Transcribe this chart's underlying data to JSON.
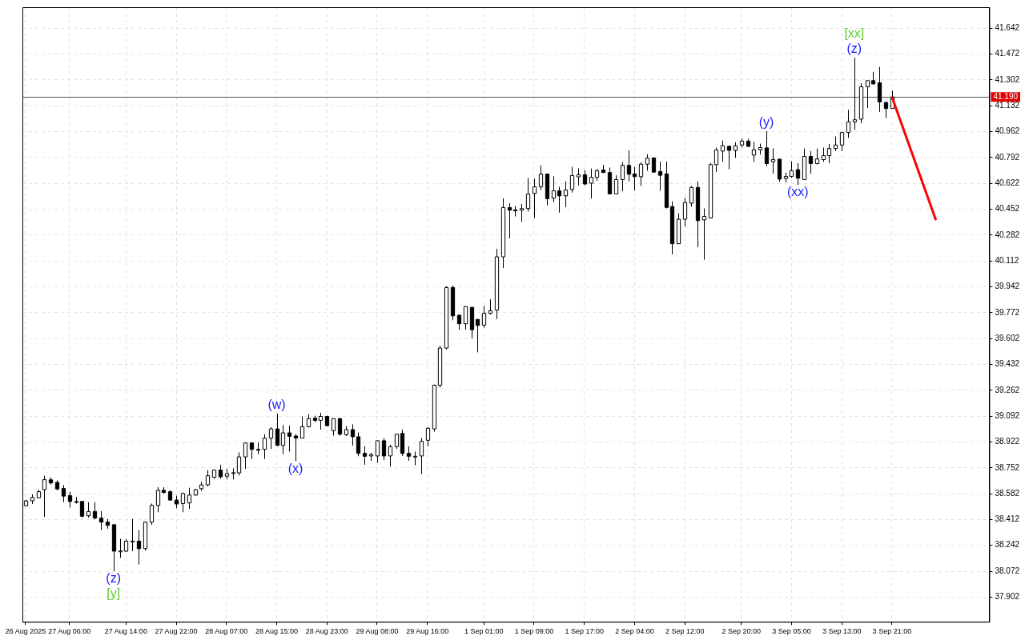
{
  "chart_data": {
    "type": "candlestick",
    "categories": [
      "26 Aug 2025",
      null,
      null,
      null,
      null,
      null,
      null,
      "27 Aug 06:00",
      null,
      null,
      null,
      null,
      null,
      null,
      null,
      null,
      "27 Aug 14:00",
      null,
      null,
      null,
      null,
      null,
      null,
      null,
      "27 Aug 22:00",
      null,
      null,
      null,
      null,
      null,
      null,
      null,
      "28 Aug 07:00",
      null,
      null,
      null,
      null,
      null,
      null,
      null,
      "28 Aug 15:00",
      null,
      null,
      null,
      null,
      null,
      null,
      null,
      "28 Aug 23:00",
      null,
      null,
      null,
      null,
      null,
      null,
      null,
      "29 Aug 08:00",
      null,
      null,
      null,
      null,
      null,
      null,
      null,
      "29 Aug 16:00",
      null,
      null,
      null,
      null,
      null,
      null,
      null,
      null,
      "1 Sep 01:00",
      null,
      null,
      null,
      null,
      null,
      null,
      null,
      "1 Sep 09:00",
      null,
      null,
      null,
      null,
      null,
      null,
      null,
      "1 Sep 17:00",
      null,
      null,
      null,
      null,
      null,
      null,
      null,
      "2 Sep 04:00",
      null,
      null,
      null,
      null,
      null,
      null,
      null,
      "2 Sep 12:00",
      null,
      null,
      null,
      null,
      null,
      null,
      null,
      null,
      "2 Sep 20:00",
      null,
      null,
      null,
      null,
      null,
      null,
      null,
      "3 Sep 05:00",
      null,
      null,
      null,
      null,
      null,
      null,
      null,
      "3 Sep 13:00",
      null,
      null,
      null,
      null,
      null,
      null,
      null,
      "3 Sep 21:00",
      null,
      null,
      null,
      null,
      null,
      null,
      null,
      null,
      null,
      null,
      null,
      null,
      null,
      null,
      null
    ],
    "ohlc": [
      [
        38.503,
        38.54,
        38.5,
        38.535
      ],
      [
        38.535,
        38.578,
        38.514,
        38.557
      ],
      [
        38.555,
        38.608,
        38.552,
        38.595
      ],
      [
        38.608,
        38.7,
        38.43,
        38.674
      ],
      [
        38.673,
        38.69,
        38.642,
        38.653
      ],
      [
        38.656,
        38.67,
        38.604,
        38.613
      ],
      [
        38.616,
        38.639,
        38.526,
        38.566
      ],
      [
        38.569,
        38.595,
        38.491,
        38.531
      ],
      [
        38.53,
        38.561,
        38.517,
        38.529
      ],
      [
        38.531,
        38.531,
        38.425,
        38.434
      ],
      [
        38.437,
        38.526,
        38.425,
        38.465
      ],
      [
        38.465,
        38.526,
        38.416,
        38.421
      ],
      [
        38.421,
        38.468,
        38.343,
        38.395
      ],
      [
        38.395,
        38.416,
        38.352,
        38.374
      ],
      [
        38.378,
        38.378,
        38.073,
        38.204
      ],
      [
        38.205,
        38.286,
        38.16,
        38.205
      ],
      [
        38.204,
        38.282,
        38.199,
        38.27
      ],
      [
        38.27,
        38.416,
        38.204,
        38.27
      ],
      [
        38.27,
        38.343,
        38.117,
        38.221
      ],
      [
        38.221,
        38.4,
        38.207,
        38.395
      ],
      [
        38.395,
        38.517,
        38.378,
        38.505
      ],
      [
        38.505,
        38.625,
        38.46,
        38.604
      ],
      [
        38.604,
        38.625,
        38.583,
        38.59
      ],
      [
        38.595,
        38.604,
        38.535,
        38.54
      ],
      [
        38.54,
        38.569,
        38.486,
        38.514
      ],
      [
        38.517,
        38.59,
        38.46,
        38.583
      ],
      [
        38.521,
        38.621,
        38.482,
        38.573
      ],
      [
        38.573,
        38.613,
        38.569,
        38.608
      ],
      [
        38.615,
        38.66,
        38.6,
        38.64
      ],
      [
        38.64,
        38.737,
        38.63,
        38.7
      ],
      [
        38.69,
        38.74,
        38.68,
        38.737
      ],
      [
        38.737,
        38.772,
        38.68,
        38.693
      ],
      [
        38.697,
        38.745,
        38.676,
        38.714
      ],
      [
        38.719,
        38.749,
        38.676,
        38.72
      ],
      [
        38.719,
        38.854,
        38.702,
        38.824
      ],
      [
        38.824,
        38.92,
        38.745,
        38.915
      ],
      [
        38.915,
        38.92,
        38.81,
        38.873
      ],
      [
        38.873,
        38.92,
        38.842,
        38.872
      ],
      [
        38.873,
        38.973,
        38.81,
        38.947
      ],
      [
        38.947,
        39.02,
        38.877,
        39.008
      ],
      [
        39.008,
        39.108,
        38.894,
        38.9
      ],
      [
        38.9,
        39.034,
        38.842,
        38.982
      ],
      [
        38.982,
        39.029,
        38.859,
        38.959
      ],
      [
        38.961,
        38.973,
        38.795,
        38.947
      ],
      [
        38.947,
        39.09,
        38.947,
        39.022
      ],
      [
        39.022,
        39.104,
        39.017,
        39.075
      ],
      [
        39.078,
        39.095,
        39.052,
        39.064
      ],
      [
        39.064,
        39.113,
        39.003,
        39.09
      ],
      [
        39.09,
        39.095,
        39.026,
        39.029
      ],
      [
        38.996,
        39.075,
        38.964,
        39.075
      ],
      [
        39.075,
        39.081,
        38.964,
        38.973
      ],
      [
        38.97,
        39.026,
        38.961,
        39.003
      ],
      [
        39.003,
        39.038,
        38.898,
        38.956
      ],
      [
        38.956,
        38.985,
        38.828,
        38.847
      ],
      [
        38.847,
        38.894,
        38.772,
        38.828
      ],
      [
        38.83,
        38.85,
        38.798,
        38.838
      ],
      [
        38.83,
        38.933,
        38.786,
        38.93
      ],
      [
        38.93,
        38.947,
        38.803,
        38.83
      ],
      [
        38.83,
        38.903,
        38.76,
        38.891
      ],
      [
        38.891,
        38.976,
        38.877,
        38.973
      ],
      [
        38.978,
        39.003,
        38.83,
        38.847
      ],
      [
        38.847,
        38.894,
        38.798,
        38.828
      ],
      [
        38.828,
        38.859,
        38.768,
        38.828
      ],
      [
        38.83,
        38.947,
        38.71,
        38.926
      ],
      [
        38.933,
        39.02,
        38.894,
        39.012
      ],
      [
        39.008,
        39.3,
        38.99,
        39.295
      ],
      [
        39.295,
        39.555,
        39.28,
        39.539
      ],
      [
        39.539,
        39.946,
        39.53,
        39.937
      ],
      [
        39.937,
        39.951,
        39.722,
        39.751
      ],
      [
        39.755,
        39.76,
        39.66,
        39.699
      ],
      [
        39.699,
        39.812,
        39.66,
        39.812
      ],
      [
        39.807,
        39.807,
        39.603,
        39.66
      ],
      [
        39.728,
        39.728,
        39.511,
        39.688
      ],
      [
        39.69,
        39.817,
        39.673,
        39.768
      ],
      [
        39.768,
        39.859,
        39.76,
        39.784
      ],
      [
        39.789,
        40.192,
        39.73,
        40.139
      ],
      [
        40.139,
        40.523,
        40.065,
        40.463
      ],
      [
        40.463,
        40.491,
        40.261,
        40.446
      ],
      [
        40.447,
        40.474,
        40.404,
        40.446
      ],
      [
        40.446,
        40.486,
        40.369,
        40.456
      ],
      [
        40.456,
        40.657,
        40.436,
        40.552
      ],
      [
        40.556,
        40.653,
        40.394,
        40.599
      ],
      [
        40.599,
        40.74,
        40.578,
        40.683
      ],
      [
        40.683,
        40.683,
        40.477,
        40.521
      ],
      [
        40.525,
        40.669,
        40.497,
        40.573
      ],
      [
        40.573,
        40.599,
        40.43,
        40.54
      ],
      [
        40.54,
        40.636,
        40.465,
        40.578
      ],
      [
        40.582,
        40.73,
        40.561,
        40.673
      ],
      [
        40.665,
        40.721,
        40.608,
        40.678
      ],
      [
        40.678,
        40.709,
        40.608,
        40.618
      ],
      [
        40.623,
        40.719,
        40.522,
        40.661
      ],
      [
        40.661,
        40.717,
        40.639,
        40.705
      ],
      [
        40.71,
        40.743,
        40.693,
        40.693
      ],
      [
        40.693,
        40.726,
        40.553,
        40.553
      ],
      [
        40.553,
        40.675,
        40.553,
        40.647
      ],
      [
        40.647,
        40.762,
        40.57,
        40.74
      ],
      [
        40.74,
        40.839,
        40.635,
        40.682
      ],
      [
        40.684,
        40.731,
        40.574,
        40.666
      ],
      [
        40.666,
        40.761,
        40.605,
        40.748
      ],
      [
        40.748,
        40.813,
        40.705,
        40.787
      ],
      [
        40.789,
        40.792,
        40.691,
        40.696
      ],
      [
        40.7,
        40.766,
        40.574,
        40.675
      ],
      [
        40.684,
        40.766,
        40.457,
        40.464
      ],
      [
        40.469,
        40.504,
        40.155,
        40.225
      ],
      [
        40.225,
        40.426,
        40.225,
        40.386
      ],
      [
        40.386,
        40.527,
        40.339,
        40.496
      ],
      [
        40.492,
        40.605,
        40.469,
        40.595
      ],
      [
        40.595,
        40.635,
        40.203,
        40.377
      ],
      [
        40.382,
        40.457,
        40.12,
        40.405
      ],
      [
        40.394,
        40.757,
        40.394,
        40.745
      ],
      [
        40.745,
        40.857,
        40.696,
        40.841
      ],
      [
        40.834,
        40.904,
        40.764,
        40.869
      ],
      [
        40.866,
        40.866,
        40.715,
        40.839
      ],
      [
        40.839,
        40.892,
        40.79,
        40.869
      ],
      [
        40.874,
        40.916,
        40.857,
        40.9
      ],
      [
        40.9,
        40.916,
        40.86,
        40.865
      ],
      [
        40.808,
        40.895,
        40.764,
        40.843
      ],
      [
        40.843,
        40.883,
        40.811,
        40.857
      ],
      [
        40.855,
        40.965,
        40.734,
        40.752
      ],
      [
        40.764,
        40.852,
        40.685,
        40.778
      ],
      [
        40.781,
        40.781,
        40.633,
        40.65
      ],
      [
        40.654,
        40.694,
        40.628,
        40.668
      ],
      [
        40.668,
        40.767,
        40.659,
        40.706
      ],
      [
        40.712,
        40.755,
        40.612,
        40.656
      ],
      [
        40.647,
        40.851,
        40.647,
        40.799
      ],
      [
        40.799,
        40.834,
        40.685,
        40.752
      ],
      [
        40.752,
        40.851,
        40.747,
        40.782
      ],
      [
        40.778,
        40.857,
        40.764,
        40.804
      ],
      [
        40.804,
        40.881,
        40.755,
        40.851
      ],
      [
        40.851,
        40.93,
        40.834,
        40.874
      ],
      [
        40.874,
        40.96,
        40.834,
        40.956
      ],
      [
        40.956,
        41.105,
        40.921,
        41.026
      ],
      [
        41.026,
        41.449,
        40.974,
        41.04
      ],
      [
        41.044,
        41.28,
        41.017,
        41.257
      ],
      [
        41.257,
        41.297,
        41.117,
        41.297
      ],
      [
        41.297,
        41.355,
        41.271,
        41.276
      ],
      [
        41.283,
        41.388,
        41.091,
        41.157
      ],
      [
        41.154,
        41.157,
        41.052,
        41.114
      ],
      [
        41.114,
        41.231,
        41.114,
        41.19
      ],
      null,
      null,
      null,
      null,
      null,
      null,
      null,
      null,
      null,
      null,
      null,
      null,
      null,
      null,
      null
    ],
    "series": [
      {
        "type": "line",
        "color": "#ff0000",
        "values": [
          null,
          null,
          null,
          null,
          null,
          null,
          null,
          null,
          null,
          null,
          null,
          null,
          null,
          null,
          null,
          null,
          null,
          null,
          null,
          null,
          null,
          null,
          null,
          null,
          null,
          null,
          null,
          null,
          null,
          null,
          null,
          null,
          null,
          null,
          null,
          null,
          null,
          null,
          null,
          null,
          null,
          null,
          null,
          null,
          null,
          null,
          null,
          null,
          null,
          null,
          null,
          null,
          null,
          null,
          null,
          null,
          null,
          null,
          null,
          null,
          null,
          null,
          null,
          null,
          null,
          null,
          null,
          null,
          null,
          null,
          null,
          null,
          null,
          null,
          null,
          null,
          null,
          null,
          null,
          null,
          null,
          null,
          null,
          null,
          null,
          null,
          null,
          null,
          null,
          null,
          null,
          null,
          null,
          null,
          null,
          null,
          null,
          null,
          null,
          null,
          null,
          null,
          null,
          null,
          null,
          null,
          null,
          null,
          null,
          null,
          null,
          null,
          null,
          null,
          null,
          null,
          null,
          null,
          null,
          null,
          null,
          null,
          null,
          null,
          null,
          null,
          null,
          null,
          null,
          null,
          null,
          null,
          null,
          null,
          null,
          null,
          null,
          null,
          41.19,
          null,
          null,
          null,
          null,
          null,
          null,
          40.38,
          null,
          null,
          null,
          null,
          null,
          null,
          null,
          null
        ]
      }
    ],
    "ylim": [
      37.74,
      41.78
    ],
    "yticks": [
      37.902,
      38.072,
      38.242,
      38.412,
      38.582,
      38.752,
      38.922,
      39.092,
      39.262,
      39.432,
      39.602,
      39.772,
      39.942,
      40.112,
      40.282,
      40.452,
      40.622,
      40.792,
      40.962,
      41.132,
      41.302,
      41.472,
      41.642
    ],
    "grid": true,
    "ref_lines": [
      {
        "axis": "y",
        "value": 41.19,
        "label": "41.190",
        "color": "#505050"
      }
    ],
    "annotations": [
      {
        "text": "(z)",
        "y": 38.073
      },
      {
        "text": "[y]",
        "y": 38.073
      },
      {
        "text": "(w)",
        "y": 39.108
      },
      {
        "text": "(x)",
        "y": 38.795
      },
      {
        "text": "(y)",
        "y": 40.965
      },
      {
        "text": "(xx)",
        "y": 40.612
      },
      {
        "text": "(z)",
        "y": 41.449
      },
      {
        "text": "[xx]",
        "y": 41.449
      }
    ]
  }
}
